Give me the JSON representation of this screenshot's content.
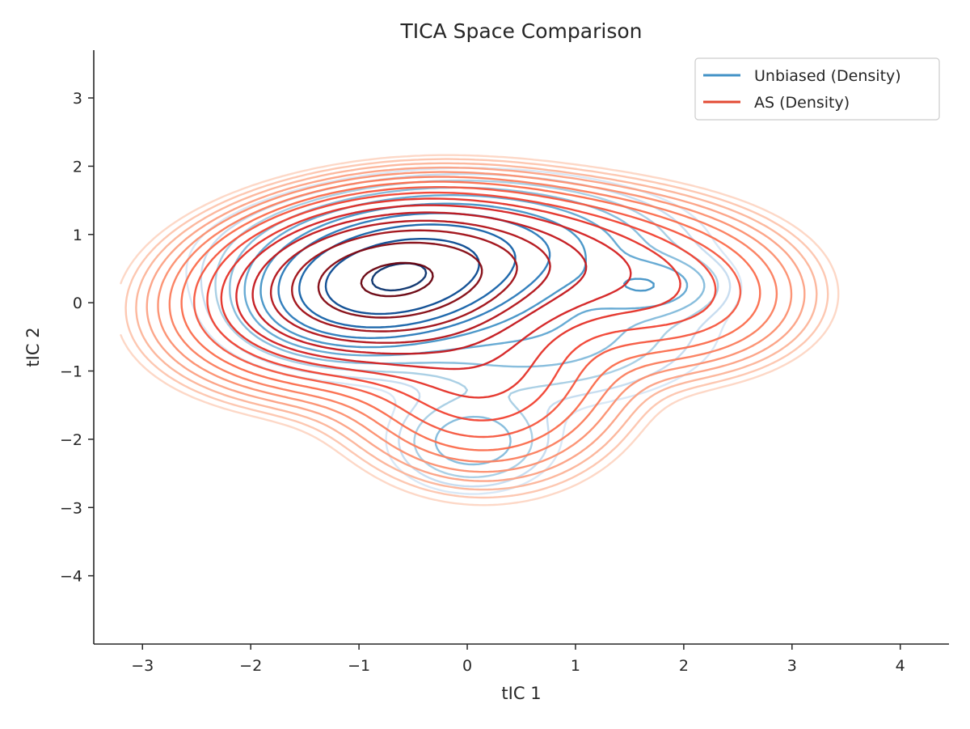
{
  "chart_data": {
    "type": "contour",
    "title": "TICA Space Comparison",
    "xlabel": "tIC 1",
    "ylabel": "tIC 2",
    "xlim": [
      -3.45,
      4.45
    ],
    "ylim": [
      -5.0,
      3.7
    ],
    "x_ticks": [
      -3,
      -2,
      -1,
      0,
      1,
      2,
      3,
      4
    ],
    "y_ticks": [
      -4,
      -3,
      -2,
      -1,
      0,
      1,
      2,
      3
    ],
    "x_tick_labels": [
      "−3",
      "−2",
      "−1",
      "0",
      "1",
      "2",
      "3",
      "4"
    ],
    "y_tick_labels": [
      "−4",
      "−3",
      "−2",
      "−1",
      "0",
      "1",
      "2",
      "3"
    ],
    "grid": false,
    "legend_position": "top-right",
    "series": [
      {
        "name": "Unbiased (Density)",
        "color": "#4292c6",
        "colormap": "Blues",
        "levels": 10,
        "components": [
          {
            "weight": 1.0,
            "mx": -0.7,
            "my": 0.3,
            "sx": 0.6,
            "sy": 0.48,
            "rho": 0.25
          },
          {
            "weight": 0.32,
            "mx": -0.15,
            "my": 0.75,
            "sx": 0.95,
            "sy": 0.48,
            "rho": 0.1
          },
          {
            "weight": 0.12,
            "mx": 1.7,
            "my": 0.25,
            "sx": 0.35,
            "sy": 0.25,
            "rho": 0.0
          },
          {
            "weight": 0.085,
            "mx": 0.05,
            "my": -2.05,
            "sx": 0.42,
            "sy": 0.4,
            "rho": 0.0
          },
          {
            "weight": 0.09,
            "mx": 0.6,
            "my": -0.4,
            "sx": 0.9,
            "sy": 0.6,
            "rho": 0.0
          }
        ]
      },
      {
        "name": "AS (Density)",
        "color": "#e34a33",
        "colormap": "Reds",
        "levels": 16,
        "components": [
          {
            "weight": 1.0,
            "mx": -0.75,
            "my": 0.3,
            "sx": 0.75,
            "sy": 0.6,
            "rho": 0.15
          },
          {
            "weight": 0.35,
            "mx": 0.3,
            "my": 0.65,
            "sx": 1.05,
            "sy": 0.55,
            "rho": 0.0
          },
          {
            "weight": 0.22,
            "mx": 0.15,
            "my": -1.0,
            "sx": 0.7,
            "sy": 0.85,
            "rho": 0.0
          },
          {
            "weight": 0.14,
            "mx": 1.9,
            "my": 0.0,
            "sx": 0.7,
            "sy": 0.6,
            "rho": 0.0
          },
          {
            "weight": 0.12,
            "mx": -1.5,
            "my": -0.2,
            "sx": 0.8,
            "sy": 0.7,
            "rho": 0.0
          }
        ]
      }
    ]
  }
}
